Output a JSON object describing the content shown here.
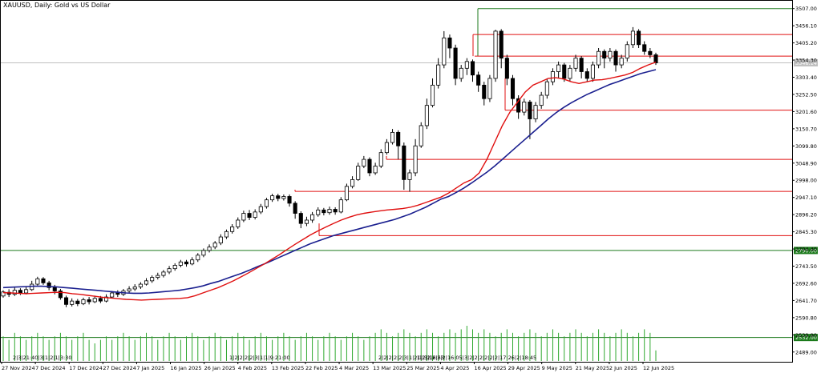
{
  "chart_data": {
    "type": "candlestick",
    "title": "XAUUSD, Daily: Gold vs US Dollar",
    "ylim": [
      2460,
      3530
    ],
    "y_ticks": [
      "3507.00",
      "3456.10",
      "3405.20",
      "3354.30",
      "3303.40",
      "3252.50",
      "3201.60",
      "3150.70",
      "3099.80",
      "3048.90",
      "2998.00",
      "2947.10",
      "2896.20",
      "2845.30",
      "2794.40",
      "2743.50",
      "2692.60",
      "2641.70",
      "2590.80",
      "2539.90",
      "2489.00"
    ],
    "x_ticks": [
      "27 Nov 2024",
      "7 Dec 2024",
      "17 Dec 2024",
      "27 Dec 2024",
      "7 Jan 2025",
      "16 Jan 2025",
      "26 Jan 2025",
      "4 Feb 2025",
      "13 Feb 2025",
      "22 Feb 2025",
      "4 Mar 2025",
      "13 Mar 2025",
      "25 Mar 2025",
      "4 Apr 2025",
      "16 Apr 2025",
      "29 Apr 2025",
      "9 May 2025",
      "21 May 2025",
      "2 Jun 2025",
      "12 Jun 2025"
    ],
    "current_price": "3346.14",
    "green_levels": [
      {
        "value": 3507.0,
        "label": ""
      },
      {
        "value": 2790.0,
        "label": "2790.00"
      },
      {
        "value": 2532.0,
        "label": "2532.00"
      }
    ],
    "red_levels": [
      3430,
      3366,
      3206,
      3060,
      2965,
      2834
    ],
    "ma_fast": [
      2665,
      2664,
      2663,
      2662,
      2663,
      2664,
      2665,
      2666,
      2665,
      2662,
      2660,
      2657,
      2654,
      2651,
      2649,
      2647,
      2645,
      2644,
      2643,
      2644,
      2645,
      2646,
      2647,
      2648,
      2650,
      2656,
      2664,
      2672,
      2680,
      2690,
      2700,
      2712,
      2724,
      2737,
      2750,
      2764,
      2778,
      2793,
      2808,
      2822,
      2836,
      2848,
      2859,
      2870,
      2880,
      2888,
      2895,
      2900,
      2904,
      2907,
      2910,
      2912,
      2914,
      2918,
      2924,
      2932,
      2940,
      2948,
      2960,
      2975,
      2990,
      3000,
      3020,
      3060,
      3110,
      3160,
      3200,
      3230,
      3260,
      3280,
      3290,
      3300,
      3302,
      3298,
      3290,
      3285,
      3290,
      3295,
      3296,
      3300,
      3305,
      3310,
      3318,
      3330,
      3340,
      3348
    ],
    "ma_slow": [
      2680,
      2681,
      2682,
      2683,
      2684,
      2684,
      2683,
      2682,
      2680,
      2678,
      2676,
      2674,
      2672,
      2670,
      2668,
      2666,
      2664,
      2663,
      2663,
      2664,
      2666,
      2668,
      2670,
      2672,
      2676,
      2680,
      2685,
      2692,
      2698,
      2706,
      2714,
      2722,
      2731,
      2741,
      2750,
      2760,
      2770,
      2780,
      2790,
      2800,
      2810,
      2818,
      2826,
      2834,
      2840,
      2846,
      2852,
      2858,
      2864,
      2870,
      2876,
      2882,
      2890,
      2898,
      2908,
      2918,
      2930,
      2942,
      2950,
      2962,
      2975,
      2990,
      3006,
      3022,
      3040,
      3060,
      3080,
      3100,
      3120,
      3140,
      3160,
      3180,
      3198,
      3214,
      3228,
      3240,
      3252,
      3262,
      3272,
      3282,
      3290,
      3298,
      3306,
      3314,
      3320,
      3326
    ],
    "candles": [
      [
        2655,
        2667,
        2650,
        2672
      ],
      [
        2666,
        2660,
        2652,
        2675
      ],
      [
        2660,
        2672,
        2655,
        2680
      ],
      [
        2672,
        2664,
        2658,
        2678
      ],
      [
        2664,
        2674,
        2660,
        2682
      ],
      [
        2674,
        2690,
        2670,
        2700
      ],
      [
        2690,
        2706,
        2686,
        2712
      ],
      [
        2706,
        2694,
        2688,
        2711
      ],
      [
        2694,
        2680,
        2672,
        2700
      ],
      [
        2680,
        2670,
        2660,
        2688
      ],
      [
        2670,
        2650,
        2644,
        2676
      ],
      [
        2650,
        2630,
        2622,
        2656
      ],
      [
        2630,
        2640,
        2624,
        2648
      ],
      [
        2640,
        2632,
        2625,
        2646
      ],
      [
        2632,
        2644,
        2628,
        2650
      ],
      [
        2644,
        2638,
        2630,
        2652
      ],
      [
        2638,
        2648,
        2634,
        2656
      ],
      [
        2648,
        2640,
        2634,
        2655
      ],
      [
        2640,
        2652,
        2636,
        2660
      ],
      [
        2652,
        2664,
        2648,
        2670
      ],
      [
        2664,
        2660,
        2652,
        2672
      ],
      [
        2660,
        2670,
        2655,
        2676
      ],
      [
        2670,
        2676,
        2664,
        2684
      ],
      [
        2676,
        2682,
        2670,
        2690
      ],
      [
        2682,
        2690,
        2676,
        2696
      ],
      [
        2690,
        2700,
        2686,
        2708
      ],
      [
        2700,
        2710,
        2694,
        2716
      ],
      [
        2710,
        2716,
        2704,
        2724
      ],
      [
        2716,
        2726,
        2710,
        2732
      ],
      [
        2726,
        2736,
        2720,
        2744
      ],
      [
        2736,
        2746,
        2730,
        2752
      ],
      [
        2746,
        2756,
        2740,
        2762
      ],
      [
        2756,
        2750,
        2742,
        2762
      ],
      [
        2750,
        2762,
        2746,
        2770
      ],
      [
        2762,
        2776,
        2756,
        2782
      ],
      [
        2776,
        2790,
        2770,
        2796
      ],
      [
        2790,
        2800,
        2784,
        2808
      ],
      [
        2800,
        2812,
        2794,
        2818
      ],
      [
        2812,
        2830,
        2806,
        2838
      ],
      [
        2830,
        2846,
        2824,
        2852
      ],
      [
        2846,
        2860,
        2840,
        2868
      ],
      [
        2860,
        2880,
        2854,
        2888
      ],
      [
        2880,
        2900,
        2874,
        2908
      ],
      [
        2900,
        2888,
        2880,
        2910
      ],
      [
        2888,
        2904,
        2882,
        2912
      ],
      [
        2904,
        2920,
        2898,
        2928
      ],
      [
        2920,
        2940,
        2914,
        2946
      ],
      [
        2940,
        2952,
        2934,
        2958
      ],
      [
        2952,
        2944,
        2936,
        2958
      ],
      [
        2944,
        2950,
        2938,
        2956
      ],
      [
        2950,
        2930,
        2920,
        2956
      ],
      [
        2930,
        2900,
        2884,
        2936
      ],
      [
        2900,
        2870,
        2856,
        2906
      ],
      [
        2870,
        2880,
        2862,
        2890
      ],
      [
        2880,
        2896,
        2872,
        2904
      ],
      [
        2896,
        2910,
        2890,
        2918
      ],
      [
        2910,
        2902,
        2894,
        2916
      ],
      [
        2902,
        2912,
        2896,
        2920
      ],
      [
        2912,
        2904,
        2896,
        2918
      ],
      [
        2904,
        2940,
        2900,
        2948
      ],
      [
        2940,
        2980,
        2936,
        2988
      ],
      [
        2980,
        3000,
        2974,
        3010
      ],
      [
        3000,
        3040,
        2996,
        3050
      ],
      [
        3040,
        3060,
        3034,
        3070
      ],
      [
        3060,
        3020,
        3010,
        3066
      ],
      [
        3020,
        3040,
        3014,
        3050
      ],
      [
        3040,
        3080,
        3034,
        3090
      ],
      [
        3080,
        3110,
        3074,
        3120
      ],
      [
        3110,
        3140,
        3104,
        3150
      ],
      [
        3140,
        3100,
        3060,
        3146
      ],
      [
        3100,
        3000,
        2970,
        3110
      ],
      [
        3000,
        3020,
        2964,
        3030
      ],
      [
        3020,
        3100,
        3010,
        3120
      ],
      [
        3100,
        3160,
        3094,
        3170
      ],
      [
        3160,
        3220,
        3150,
        3240
      ],
      [
        3220,
        3280,
        3214,
        3300
      ],
      [
        3280,
        3340,
        3270,
        3360
      ],
      [
        3340,
        3420,
        3330,
        3440
      ],
      [
        3420,
        3390,
        3360,
        3430
      ],
      [
        3390,
        3300,
        3280,
        3400
      ],
      [
        3300,
        3330,
        3290,
        3340
      ],
      [
        3330,
        3350,
        3310,
        3360
      ],
      [
        3350,
        3310,
        3290,
        3356
      ],
      [
        3310,
        3280,
        3260,
        3320
      ],
      [
        3280,
        3240,
        3220,
        3290
      ],
      [
        3240,
        3300,
        3230,
        3310
      ],
      [
        3300,
        3440,
        3290,
        3444
      ],
      [
        3440,
        3360,
        3330,
        3446
      ],
      [
        3360,
        3300,
        3280,
        3370
      ],
      [
        3300,
        3240,
        3220,
        3310
      ],
      [
        3240,
        3200,
        3180,
        3250
      ],
      [
        3200,
        3230,
        3190,
        3240
      ],
      [
        3230,
        3180,
        3120,
        3236
      ],
      [
        3180,
        3220,
        3170,
        3230
      ],
      [
        3220,
        3250,
        3210,
        3260
      ],
      [
        3250,
        3290,
        3240,
        3300
      ],
      [
        3290,
        3320,
        3280,
        3330
      ],
      [
        3320,
        3340,
        3300,
        3350
      ],
      [
        3340,
        3300,
        3290,
        3346
      ],
      [
        3300,
        3330,
        3290,
        3340
      ],
      [
        3330,
        3360,
        3320,
        3370
      ],
      [
        3360,
        3320,
        3300,
        3366
      ],
      [
        3320,
        3300,
        3290,
        3330
      ],
      [
        3300,
        3340,
        3290,
        3350
      ],
      [
        3340,
        3380,
        3330,
        3390
      ],
      [
        3380,
        3360,
        3330,
        3386
      ],
      [
        3360,
        3380,
        3350,
        3390
      ],
      [
        3380,
        3340,
        3320,
        3386
      ],
      [
        3340,
        3360,
        3330,
        3370
      ],
      [
        3360,
        3400,
        3350,
        3410
      ],
      [
        3400,
        3440,
        3390,
        3452
      ],
      [
        3440,
        3400,
        3390,
        3446
      ],
      [
        3400,
        3380,
        3370,
        3410
      ],
      [
        3380,
        3370,
        3360,
        3390
      ],
      [
        3370,
        3346,
        3340,
        3376
      ]
    ],
    "volume": [
      0.7,
      0.6,
      0.8,
      0.7,
      0.6,
      0.7,
      0.8,
      0.7,
      0.6,
      0.7,
      0.8,
      0.7,
      0.6,
      0.7,
      0.8,
      0.6,
      0.5,
      0.6,
      0.7,
      0.6,
      0.7,
      0.8,
      0.7,
      0.6,
      0.7,
      0.8,
      0.7,
      0.6,
      0.7,
      0.8,
      0.7,
      0.6,
      0.7,
      0.8,
      0.7,
      0.6,
      0.7,
      0.8,
      0.7,
      0.6,
      0.7,
      0.8,
      0.7,
      0.6,
      0.7,
      0.8,
      0.7,
      0.6,
      0.7,
      0.8,
      0.7,
      0.6,
      0.7,
      0.8,
      0.7,
      0.6,
      0.7,
      0.8,
      0.7,
      0.6,
      0.7,
      0.8,
      0.7,
      0.6,
      0.7,
      0.8,
      0.9,
      0.8,
      0.7,
      0.8,
      0.9,
      0.8,
      0.7,
      0.8,
      0.9,
      0.8,
      0.7,
      0.8,
      0.9,
      0.8,
      0.9,
      1.0,
      0.9,
      0.8,
      0.9,
      0.8,
      0.7,
      0.8,
      0.9,
      0.8,
      0.7,
      0.8,
      0.9,
      0.8,
      0.7,
      0.8,
      0.9,
      0.8,
      0.7,
      0.8,
      0.9,
      0.8,
      0.7,
      0.8,
      0.9,
      0.8,
      0.7,
      0.8,
      0.9,
      0.8,
      0.7,
      0.8,
      0.9,
      0.8,
      0.3
    ],
    "volume_labels": [
      "2|3|21:40|3|1|2|1|3:30",
      "1|2|2|2|2|3|1|1|9:21:00",
      "2|2|2|2|2|3|1|2|1|3|16:53",
      "1|2|2|2|2|2|16:05|3|2|2|2|2|2|2|17:26|2|18:45"
    ]
  }
}
